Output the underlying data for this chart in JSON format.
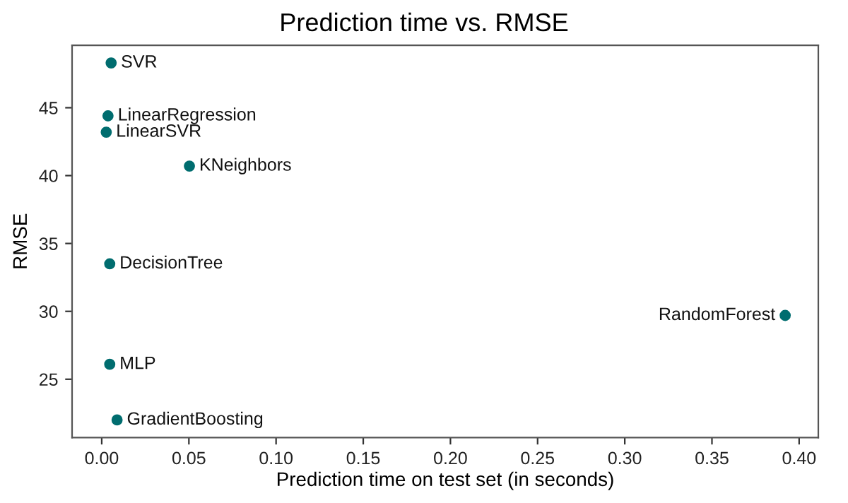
{
  "chart_data": {
    "type": "scatter",
    "title": "Prediction time vs. RMSE",
    "xlabel": "Prediction time on test set (in seconds)",
    "ylabel": "RMSE",
    "x": [
      0.0054,
      0.0036,
      0.0026,
      0.0503,
      0.0046,
      0.0046,
      0.0088,
      0.392
    ],
    "series": [
      {
        "color": "#006d6f",
        "values": [
          48.3,
          44.4,
          43.2,
          40.7,
          33.5,
          26.1,
          22.0,
          29.7
        ]
      }
    ],
    "annotations": [
      {
        "text": "SVR",
        "x": 0.0054,
        "y": 48.3
      },
      {
        "text": "LinearRegression",
        "x": 0.0036,
        "y": 44.4
      },
      {
        "text": "LinearSVR",
        "x": 0.0026,
        "y": 43.2
      },
      {
        "text": "KNeighbors",
        "x": 0.0503,
        "y": 40.7
      },
      {
        "text": "DecisionTree",
        "x": 0.0046,
        "y": 33.5
      },
      {
        "text": "MLP",
        "x": 0.0046,
        "y": 26.1
      },
      {
        "text": "GradientBoosting",
        "x": 0.0088,
        "y": 22.0
      },
      {
        "text": "RandomForest",
        "x": 0.392,
        "y": 29.7
      }
    ],
    "xlim": [
      -0.017,
      0.411
    ],
    "ylim": [
      20.7,
      49.6
    ],
    "xticks": [
      {
        "value": 0,
        "label": "0.00"
      },
      {
        "value": 0.05,
        "label": "0.05"
      },
      {
        "value": 0.1,
        "label": "0.10"
      },
      {
        "value": 0.15,
        "label": "0.15"
      },
      {
        "value": 0.2,
        "label": "0.20"
      },
      {
        "value": 0.25,
        "label": "0.25"
      },
      {
        "value": 0.3,
        "label": "0.30"
      },
      {
        "value": 0.35,
        "label": "0.35"
      },
      {
        "value": 0.4,
        "label": "0.40"
      }
    ],
    "yticks": [
      25,
      30,
      35,
      40,
      45
    ],
    "marker": "circle",
    "grid": false,
    "legend": false
  }
}
